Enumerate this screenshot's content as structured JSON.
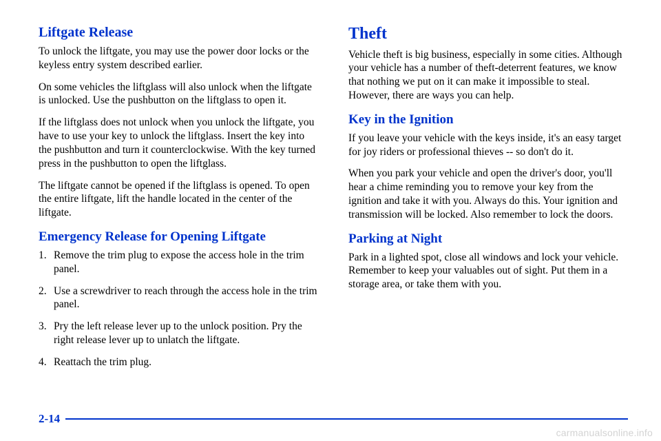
{
  "colors": {
    "heading": "#0033cc",
    "text": "#000000",
    "rule": "#0033cc",
    "background": "#ffffff",
    "watermark": "rgba(0,0,0,0.18)"
  },
  "left": {
    "h1": "Liftgate Release",
    "p1": "To unlock the liftgate, you may use the power door locks or the keyless entry system described earlier.",
    "p2": "On some vehicles the liftglass will also unlock when the liftgate is unlocked. Use the pushbutton on the liftglass to open it.",
    "p3": "If the liftglass does not unlock when you unlock the liftgate, you have to use your key to unlock the liftglass. Insert the key into the pushbutton and turn it counterclockwise. With the key turned press in the pushbutton to open the liftglass.",
    "p4": "The liftgate cannot be opened if the liftglass is opened. To open the entire liftgate, lift the handle located in the center of the liftgate.",
    "h2": "Emergency Release for Opening Liftgate",
    "steps": [
      "Remove the trim plug to expose the access hole in the trim panel.",
      "Use a screwdriver to reach through the access hole in the trim panel.",
      "Pry the left release lever up to the unlock position. Pry the right release lever up to unlatch the liftgate.",
      "Reattach the trim plug."
    ]
  },
  "right": {
    "h1": "Theft",
    "p1": "Vehicle theft is big business, especially in some cities. Although your vehicle has a number of theft-deterrent features, we know that nothing we put on it can make it impossible to steal. However, there are ways you can help.",
    "h2": "Key in the Ignition",
    "p2": "If you leave your vehicle with the keys inside, it's an easy target for joy riders or professional thieves -- so don't do it.",
    "p3": "When you park your vehicle and open the driver's door, you'll hear a chime reminding you to remove your key from the ignition and take it with you. Always do this. Your ignition and transmission will be locked. Also remember to lock the doors.",
    "h3": "Parking at Night",
    "p4": "Park in a lighted spot, close all windows and lock your vehicle. Remember to keep your valuables out of sight. Put them in a storage area, or take them with you."
  },
  "pagenum": "2-14",
  "watermark": "carmanualsonline.info"
}
